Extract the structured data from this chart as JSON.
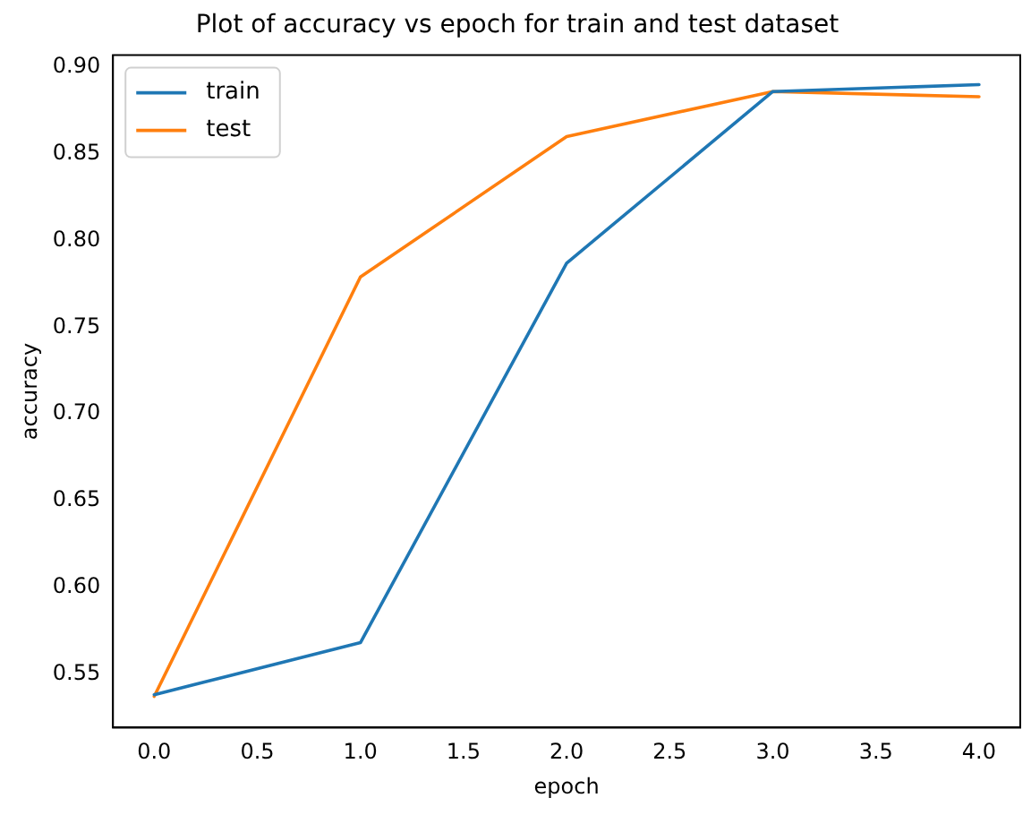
{
  "chart_data": {
    "type": "line",
    "title": "Plot of accuracy vs epoch for train and test dataset",
    "xlabel": "epoch",
    "ylabel": "accuracy",
    "x": [
      0,
      1,
      2,
      3,
      4
    ],
    "series": [
      {
        "name": "train",
        "color": "#1f77b4",
        "values": [
          0.538,
          0.568,
          0.787,
          0.886,
          0.89
        ]
      },
      {
        "name": "test",
        "color": "#ff7f0e",
        "values": [
          0.537,
          0.779,
          0.86,
          0.886,
          0.883
        ]
      }
    ],
    "xlim": [
      -0.2,
      4.2
    ],
    "xticks": [
      {
        "value": 0,
        "label": "0.0"
      },
      0.5,
      {
        "value": 1,
        "label": "1.0"
      },
      1.5,
      {
        "value": 2,
        "label": "2.0"
      },
      2.5,
      {
        "value": 3,
        "label": "3.0"
      },
      3.5,
      {
        "value": 4,
        "label": "4.0"
      }
    ],
    "ylim": [
      0.519,
      0.907
    ],
    "yticks": [
      0.55,
      {
        "value": 0.6,
        "label": "0.60"
      },
      0.65,
      {
        "value": 0.7,
        "label": "0.70"
      },
      0.75,
      {
        "value": 0.8,
        "label": "0.80"
      },
      0.85,
      {
        "value": 0.9,
        "label": "0.90"
      }
    ],
    "legend": "top left",
    "grid": false,
    "marker": "none",
    "line_style": "solid"
  }
}
